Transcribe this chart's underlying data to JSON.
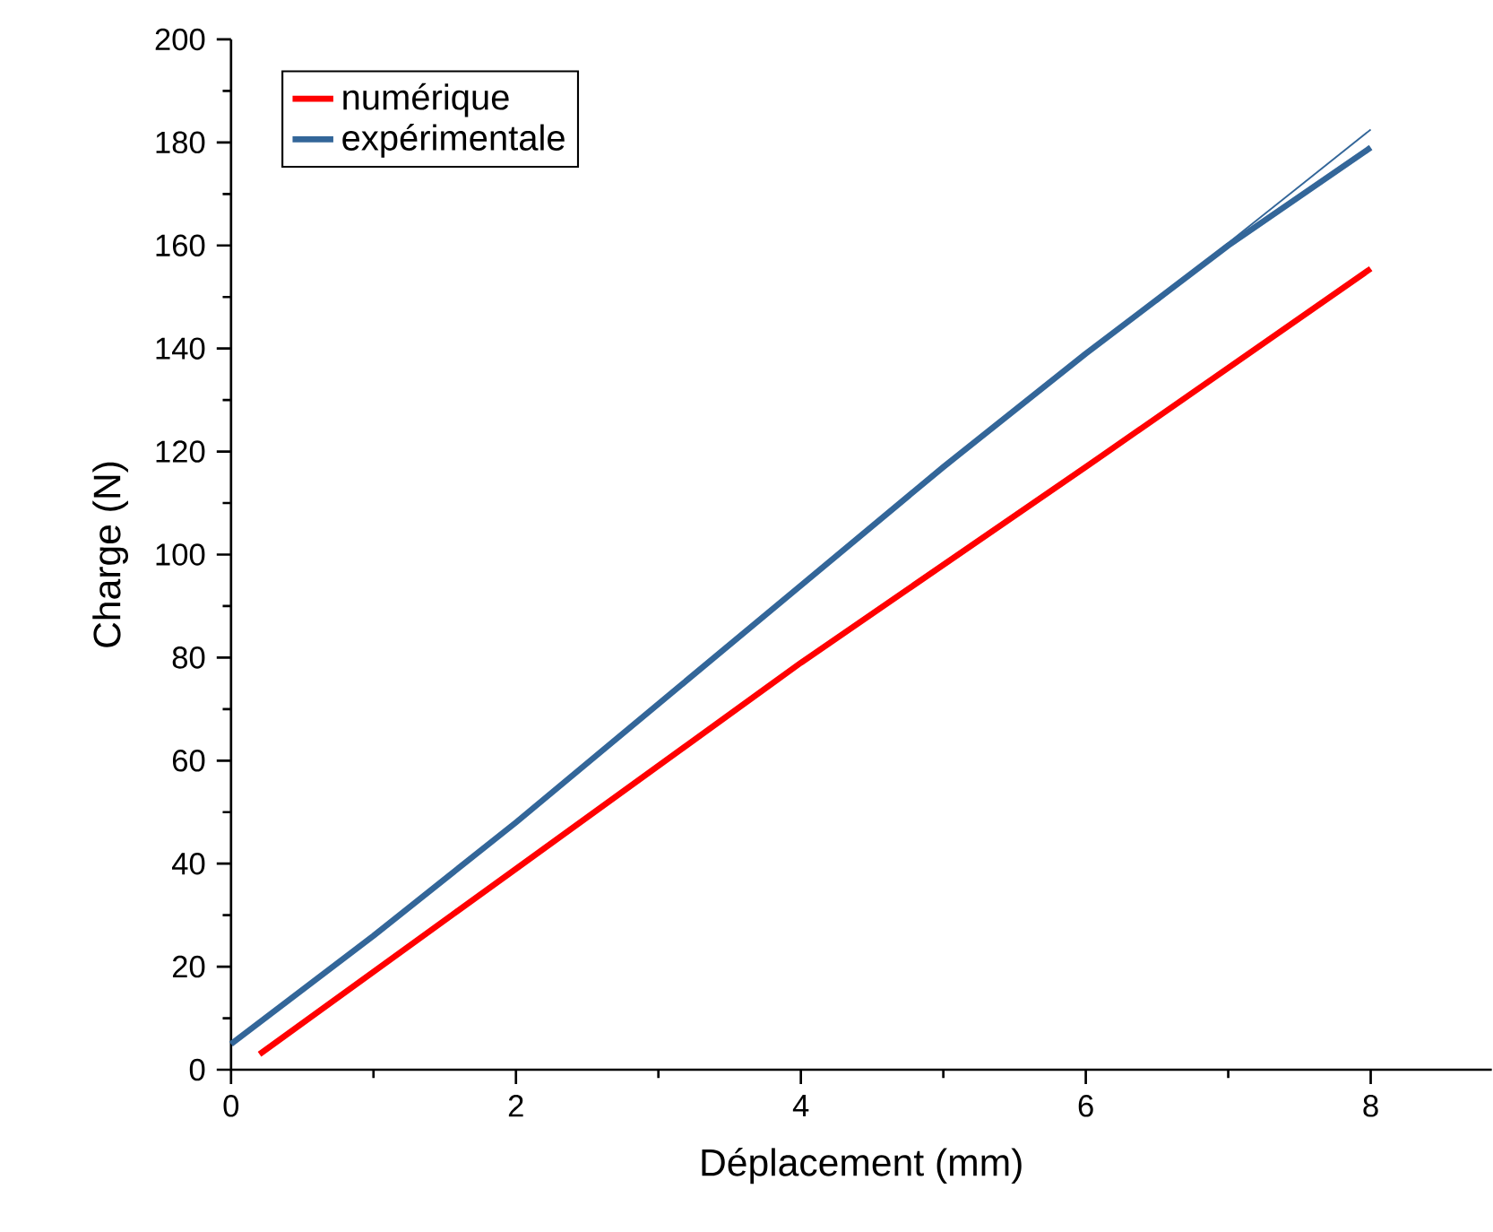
{
  "chart_data": {
    "type": "line",
    "xlabel": "Déplacement (mm)",
    "ylabel": "Charge (N)",
    "xlim": [
      0,
      8.85
    ],
    "ylim": [
      0,
      200
    ],
    "xticks": [
      0,
      2,
      4,
      6,
      8
    ],
    "yticks": [
      0,
      20,
      40,
      60,
      80,
      100,
      120,
      140,
      160,
      180,
      200
    ],
    "grid": false,
    "legend": "top left",
    "marker": "none",
    "line_style": "solid",
    "series": [
      {
        "name": "numérique",
        "color": "#ff0000",
        "x": [
          0.2,
          2,
          4,
          6,
          8
        ],
        "values": [
          3,
          39,
          79,
          117,
          155.5
        ]
      },
      {
        "name": "expérimentale",
        "color": "#336699",
        "x": [
          0,
          1,
          2,
          3,
          4,
          5,
          6,
          7,
          8
        ],
        "values": [
          5,
          26,
          48,
          71,
          94,
          117,
          139,
          160,
          179
        ]
      },
      {
        "color": "#336699",
        "x": [
          6.5,
          7,
          7.5,
          8
        ],
        "values": [
          149,
          160.5,
          171.5,
          182.5
        ]
      }
    ]
  }
}
